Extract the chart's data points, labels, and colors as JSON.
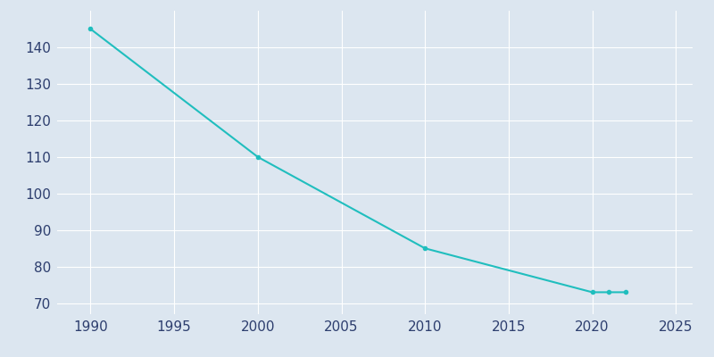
{
  "years": [
    1990,
    2000,
    2010,
    2020,
    2021,
    2022
  ],
  "population": [
    145,
    110,
    85,
    73,
    73,
    73
  ],
  "line_color": "#20BEBE",
  "marker": "o",
  "marker_size": 3,
  "background_color": "#dce6f0",
  "grid_color": "#ffffff",
  "xlim": [
    1988,
    2026
  ],
  "ylim": [
    67,
    150
  ],
  "xticks": [
    1990,
    1995,
    2000,
    2005,
    2010,
    2015,
    2020,
    2025
  ],
  "yticks": [
    70,
    80,
    90,
    100,
    110,
    120,
    130,
    140
  ],
  "tick_color": "#2d3e6e",
  "tick_fontsize": 11,
  "linewidth": 1.5
}
